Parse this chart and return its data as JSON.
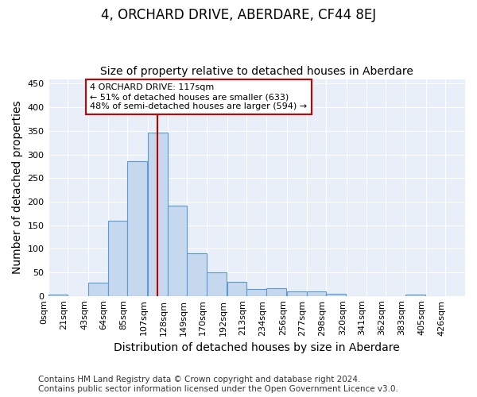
{
  "title": "4, ORCHARD DRIVE, ABERDARE, CF44 8EJ",
  "subtitle": "Size of property relative to detached houses in Aberdare",
  "xlabel": "Distribution of detached houses by size in Aberdare",
  "ylabel": "Number of detached properties",
  "footer_line1": "Contains HM Land Registry data © Crown copyright and database right 2024.",
  "footer_line2": "Contains public sector information licensed under the Open Government Licence v3.0.",
  "bar_left_edges": [
    0,
    21,
    43,
    64,
    85,
    107,
    128,
    149,
    170,
    192,
    213,
    234,
    256,
    277,
    298,
    320,
    341,
    362,
    383,
    405
  ],
  "bar_heights": [
    3,
    0,
    28,
    160,
    285,
    347,
    192,
    90,
    50,
    30,
    15,
    17,
    10,
    10,
    5,
    0,
    0,
    0,
    3,
    0
  ],
  "bin_width": 21,
  "bar_color": "#c5d8ee",
  "bar_edge_color": "#5b9bd5",
  "plot_bg_color": "#e8eff8",
  "fig_bg_color": "#ffffff",
  "vline_x": 117,
  "vline_color": "#bb0000",
  "annotation_text": "4 ORCHARD DRIVE: 117sqm\n← 51% of detached houses are smaller (633)\n48% of semi-detached houses are larger (594) →",
  "annotation_box_edge": "#cc0000",
  "ylim": [
    0,
    460
  ],
  "yticks": [
    0,
    50,
    100,
    150,
    200,
    250,
    300,
    350,
    400,
    450
  ],
  "xtick_labels": [
    "0sqm",
    "21sqm",
    "43sqm",
    "64sqm",
    "85sqm",
    "107sqm",
    "128sqm",
    "149sqm",
    "170sqm",
    "192sqm",
    "213sqm",
    "234sqm",
    "256sqm",
    "277sqm",
    "298sqm",
    "320sqm",
    "341sqm",
    "362sqm",
    "383sqm",
    "405sqm",
    "426sqm"
  ],
  "title_fontsize": 12,
  "subtitle_fontsize": 10,
  "axis_label_fontsize": 10,
  "tick_fontsize": 8,
  "annotation_fontsize": 8,
  "footer_fontsize": 7.5
}
